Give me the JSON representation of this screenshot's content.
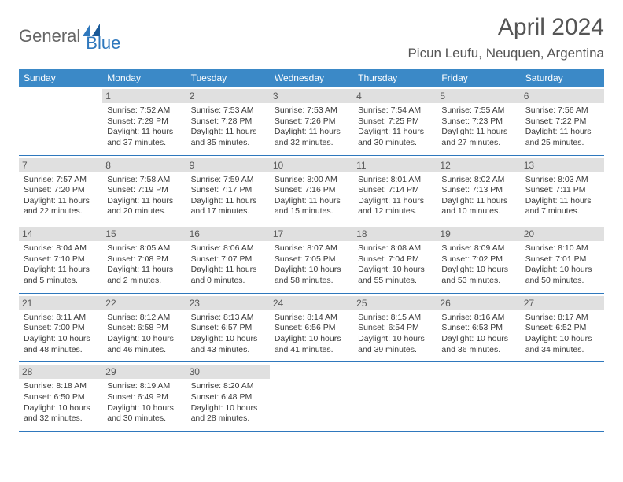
{
  "logo": {
    "general": "General",
    "blue": "Blue"
  },
  "header": {
    "month_title": "April 2024",
    "location": "Picun Leufu, Neuquen, Argentina"
  },
  "colors": {
    "header_bg": "#3b89c7",
    "row_divider": "#2f78bd",
    "daynum_bg": "#e0e0e0",
    "text": "#3a3a3a"
  },
  "typography": {
    "title_size": 30,
    "location_size": 17,
    "day_header_size": 12,
    "day_number_size": 12,
    "body_size": 10.5
  },
  "day_names": [
    "Sunday",
    "Monday",
    "Tuesday",
    "Wednesday",
    "Thursday",
    "Friday",
    "Saturday"
  ],
  "weeks": [
    [
      {
        "num": "",
        "sunrise": "",
        "sunset": "",
        "daylight1": "",
        "daylight2": ""
      },
      {
        "num": "1",
        "sunrise": "Sunrise: 7:52 AM",
        "sunset": "Sunset: 7:29 PM",
        "daylight1": "Daylight: 11 hours",
        "daylight2": "and 37 minutes."
      },
      {
        "num": "2",
        "sunrise": "Sunrise: 7:53 AM",
        "sunset": "Sunset: 7:28 PM",
        "daylight1": "Daylight: 11 hours",
        "daylight2": "and 35 minutes."
      },
      {
        "num": "3",
        "sunrise": "Sunrise: 7:53 AM",
        "sunset": "Sunset: 7:26 PM",
        "daylight1": "Daylight: 11 hours",
        "daylight2": "and 32 minutes."
      },
      {
        "num": "4",
        "sunrise": "Sunrise: 7:54 AM",
        "sunset": "Sunset: 7:25 PM",
        "daylight1": "Daylight: 11 hours",
        "daylight2": "and 30 minutes."
      },
      {
        "num": "5",
        "sunrise": "Sunrise: 7:55 AM",
        "sunset": "Sunset: 7:23 PM",
        "daylight1": "Daylight: 11 hours",
        "daylight2": "and 27 minutes."
      },
      {
        "num": "6",
        "sunrise": "Sunrise: 7:56 AM",
        "sunset": "Sunset: 7:22 PM",
        "daylight1": "Daylight: 11 hours",
        "daylight2": "and 25 minutes."
      }
    ],
    [
      {
        "num": "7",
        "sunrise": "Sunrise: 7:57 AM",
        "sunset": "Sunset: 7:20 PM",
        "daylight1": "Daylight: 11 hours",
        "daylight2": "and 22 minutes."
      },
      {
        "num": "8",
        "sunrise": "Sunrise: 7:58 AM",
        "sunset": "Sunset: 7:19 PM",
        "daylight1": "Daylight: 11 hours",
        "daylight2": "and 20 minutes."
      },
      {
        "num": "9",
        "sunrise": "Sunrise: 7:59 AM",
        "sunset": "Sunset: 7:17 PM",
        "daylight1": "Daylight: 11 hours",
        "daylight2": "and 17 minutes."
      },
      {
        "num": "10",
        "sunrise": "Sunrise: 8:00 AM",
        "sunset": "Sunset: 7:16 PM",
        "daylight1": "Daylight: 11 hours",
        "daylight2": "and 15 minutes."
      },
      {
        "num": "11",
        "sunrise": "Sunrise: 8:01 AM",
        "sunset": "Sunset: 7:14 PM",
        "daylight1": "Daylight: 11 hours",
        "daylight2": "and 12 minutes."
      },
      {
        "num": "12",
        "sunrise": "Sunrise: 8:02 AM",
        "sunset": "Sunset: 7:13 PM",
        "daylight1": "Daylight: 11 hours",
        "daylight2": "and 10 minutes."
      },
      {
        "num": "13",
        "sunrise": "Sunrise: 8:03 AM",
        "sunset": "Sunset: 7:11 PM",
        "daylight1": "Daylight: 11 hours",
        "daylight2": "and 7 minutes."
      }
    ],
    [
      {
        "num": "14",
        "sunrise": "Sunrise: 8:04 AM",
        "sunset": "Sunset: 7:10 PM",
        "daylight1": "Daylight: 11 hours",
        "daylight2": "and 5 minutes."
      },
      {
        "num": "15",
        "sunrise": "Sunrise: 8:05 AM",
        "sunset": "Sunset: 7:08 PM",
        "daylight1": "Daylight: 11 hours",
        "daylight2": "and 2 minutes."
      },
      {
        "num": "16",
        "sunrise": "Sunrise: 8:06 AM",
        "sunset": "Sunset: 7:07 PM",
        "daylight1": "Daylight: 11 hours",
        "daylight2": "and 0 minutes."
      },
      {
        "num": "17",
        "sunrise": "Sunrise: 8:07 AM",
        "sunset": "Sunset: 7:05 PM",
        "daylight1": "Daylight: 10 hours",
        "daylight2": "and 58 minutes."
      },
      {
        "num": "18",
        "sunrise": "Sunrise: 8:08 AM",
        "sunset": "Sunset: 7:04 PM",
        "daylight1": "Daylight: 10 hours",
        "daylight2": "and 55 minutes."
      },
      {
        "num": "19",
        "sunrise": "Sunrise: 8:09 AM",
        "sunset": "Sunset: 7:02 PM",
        "daylight1": "Daylight: 10 hours",
        "daylight2": "and 53 minutes."
      },
      {
        "num": "20",
        "sunrise": "Sunrise: 8:10 AM",
        "sunset": "Sunset: 7:01 PM",
        "daylight1": "Daylight: 10 hours",
        "daylight2": "and 50 minutes."
      }
    ],
    [
      {
        "num": "21",
        "sunrise": "Sunrise: 8:11 AM",
        "sunset": "Sunset: 7:00 PM",
        "daylight1": "Daylight: 10 hours",
        "daylight2": "and 48 minutes."
      },
      {
        "num": "22",
        "sunrise": "Sunrise: 8:12 AM",
        "sunset": "Sunset: 6:58 PM",
        "daylight1": "Daylight: 10 hours",
        "daylight2": "and 46 minutes."
      },
      {
        "num": "23",
        "sunrise": "Sunrise: 8:13 AM",
        "sunset": "Sunset: 6:57 PM",
        "daylight1": "Daylight: 10 hours",
        "daylight2": "and 43 minutes."
      },
      {
        "num": "24",
        "sunrise": "Sunrise: 8:14 AM",
        "sunset": "Sunset: 6:56 PM",
        "daylight1": "Daylight: 10 hours",
        "daylight2": "and 41 minutes."
      },
      {
        "num": "25",
        "sunrise": "Sunrise: 8:15 AM",
        "sunset": "Sunset: 6:54 PM",
        "daylight1": "Daylight: 10 hours",
        "daylight2": "and 39 minutes."
      },
      {
        "num": "26",
        "sunrise": "Sunrise: 8:16 AM",
        "sunset": "Sunset: 6:53 PM",
        "daylight1": "Daylight: 10 hours",
        "daylight2": "and 36 minutes."
      },
      {
        "num": "27",
        "sunrise": "Sunrise: 8:17 AM",
        "sunset": "Sunset: 6:52 PM",
        "daylight1": "Daylight: 10 hours",
        "daylight2": "and 34 minutes."
      }
    ],
    [
      {
        "num": "28",
        "sunrise": "Sunrise: 8:18 AM",
        "sunset": "Sunset: 6:50 PM",
        "daylight1": "Daylight: 10 hours",
        "daylight2": "and 32 minutes."
      },
      {
        "num": "29",
        "sunrise": "Sunrise: 8:19 AM",
        "sunset": "Sunset: 6:49 PM",
        "daylight1": "Daylight: 10 hours",
        "daylight2": "and 30 minutes."
      },
      {
        "num": "30",
        "sunrise": "Sunrise: 8:20 AM",
        "sunset": "Sunset: 6:48 PM",
        "daylight1": "Daylight: 10 hours",
        "daylight2": "and 28 minutes."
      },
      {
        "num": "",
        "sunrise": "",
        "sunset": "",
        "daylight1": "",
        "daylight2": ""
      },
      {
        "num": "",
        "sunrise": "",
        "sunset": "",
        "daylight1": "",
        "daylight2": ""
      },
      {
        "num": "",
        "sunrise": "",
        "sunset": "",
        "daylight1": "",
        "daylight2": ""
      },
      {
        "num": "",
        "sunrise": "",
        "sunset": "",
        "daylight1": "",
        "daylight2": ""
      }
    ]
  ]
}
